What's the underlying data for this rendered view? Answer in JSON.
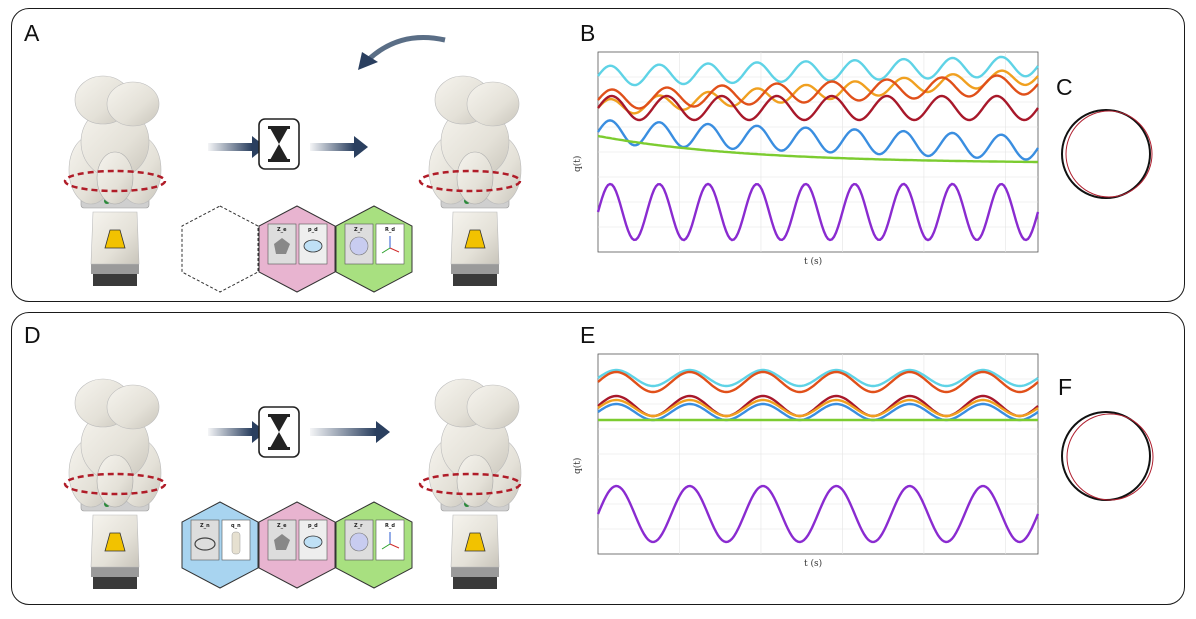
{
  "panels": {
    "A": "A",
    "B": "B",
    "C": "C",
    "D": "D",
    "E": "E",
    "F": "F"
  },
  "plot_top": {
    "ylabel": "q(t)",
    "xlabel": "t (s)"
  },
  "plot_bottom": {
    "ylabel": "q(t)",
    "xlabel": "t (s)"
  },
  "cards_top": [
    "Z_e",
    "p_d",
    "Z_r",
    "R_d"
  ],
  "cards_bottom": [
    "Z_n",
    "q_n",
    "Z_e",
    "p_d",
    "Z_r",
    "R_d"
  ],
  "colors": {
    "cyan": "#5fd3e6",
    "orange": "#f0a020",
    "red_orange": "#e0501a",
    "dark_red": "#a8182a",
    "blue": "#3a8ee0",
    "green": "#7ccc30",
    "purple": "#8a2bd0",
    "hex_pink": "#e8b4d0",
    "hex_green": "#a8e080",
    "hex_blue": "#a8d4f0",
    "arrow": "#2a3f5f"
  },
  "chart_data": [
    {
      "type": "line",
      "title": "",
      "xlabel": "t (s)",
      "ylabel": "q(t)",
      "series": [
        {
          "name": "joint-cyan",
          "color": "#5fd3e6",
          "offset": 0.88,
          "amp": 0.05,
          "periods": 9,
          "drift": 0.05
        },
        {
          "name": "joint-orange",
          "color": "#f0a020",
          "offset": 0.72,
          "amp": 0.04,
          "periods": 9,
          "drift": 0.16
        },
        {
          "name": "joint-red-orange",
          "color": "#e0501a",
          "offset": 0.76,
          "amp": 0.05,
          "periods": 8,
          "drift": 0.08
        },
        {
          "name": "joint-dark-red",
          "color": "#a8182a",
          "offset": 0.72,
          "amp": 0.06,
          "periods": 8,
          "drift": 0.0
        },
        {
          "name": "joint-blue",
          "color": "#3a8ee0",
          "offset": 0.6,
          "amp": 0.06,
          "periods": 9,
          "drift": -0.08
        },
        {
          "name": "joint-green",
          "color": "#7ccc30",
          "offset": 0.58,
          "amp": 0.0,
          "periods": 0,
          "drift": -0.13
        },
        {
          "name": "joint-purple",
          "color": "#8a2bd0",
          "offset": 0.2,
          "amp": 0.14,
          "periods": 9,
          "drift": 0.0
        }
      ]
    },
    {
      "type": "line",
      "title": "",
      "xlabel": "t (s)",
      "ylabel": "q(t)",
      "series": [
        {
          "name": "joint-cyan",
          "color": "#5fd3e6",
          "offset": 0.88,
          "amp": 0.04,
          "periods": 6,
          "drift": 0.0
        },
        {
          "name": "joint-red-orange",
          "color": "#e0501a",
          "offset": 0.86,
          "amp": 0.05,
          "periods": 6,
          "drift": 0.0
        },
        {
          "name": "joint-dark-red",
          "color": "#a8182a",
          "offset": 0.74,
          "amp": 0.05,
          "periods": 6,
          "drift": 0.0
        },
        {
          "name": "joint-orange",
          "color": "#f0a020",
          "offset": 0.73,
          "amp": 0.04,
          "periods": 6,
          "drift": 0.0
        },
        {
          "name": "joint-blue",
          "color": "#3a8ee0",
          "offset": 0.71,
          "amp": 0.04,
          "periods": 6,
          "drift": 0.0
        },
        {
          "name": "joint-green",
          "color": "#7ccc30",
          "offset": 0.67,
          "amp": 0.0,
          "periods": 0,
          "drift": 0.0
        },
        {
          "name": "joint-purple",
          "color": "#8a2bd0",
          "offset": 0.2,
          "amp": 0.14,
          "periods": 6,
          "drift": 0.0
        }
      ]
    }
  ]
}
